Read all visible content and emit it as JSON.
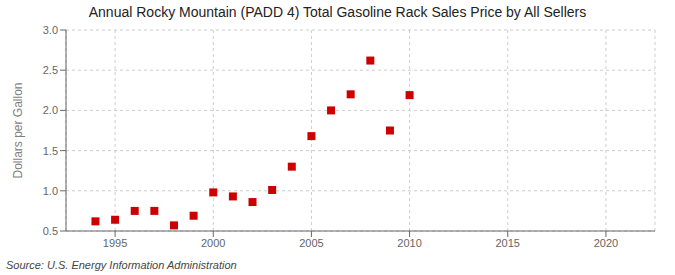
{
  "chart_data": {
    "type": "scatter",
    "title": "Annual Rocky Mountain (PADD 4) Total Gasoline Rack Sales Price by All Sellers",
    "ylabel": "Dollars per Gallon",
    "source": "Source: U.S. Energy Information Administration",
    "x": [
      1994,
      1995,
      1996,
      1997,
      1998,
      1999,
      2000,
      2001,
      2002,
      2003,
      2004,
      2005,
      2006,
      2007,
      2008,
      2009,
      2010
    ],
    "values": [
      0.62,
      0.64,
      0.75,
      0.75,
      0.57,
      0.69,
      0.98,
      0.93,
      0.86,
      1.01,
      1.3,
      1.68,
      2.0,
      2.2,
      2.62,
      1.75,
      2.19
    ],
    "color": "#cc0000",
    "marker": "square",
    "xlim": [
      1992.5,
      2022.5
    ],
    "ylim": [
      0.5,
      3.0
    ],
    "xticks": [
      1995,
      2000,
      2005,
      2010,
      2015,
      2020
    ],
    "yticks": [
      0.5,
      {
        "value": 1,
        "label": "1.0"
      },
      1.5,
      {
        "value": 2,
        "label": "2.0"
      },
      2.5,
      {
        "value": 3,
        "label": "3.0"
      }
    ],
    "grid": true
  }
}
